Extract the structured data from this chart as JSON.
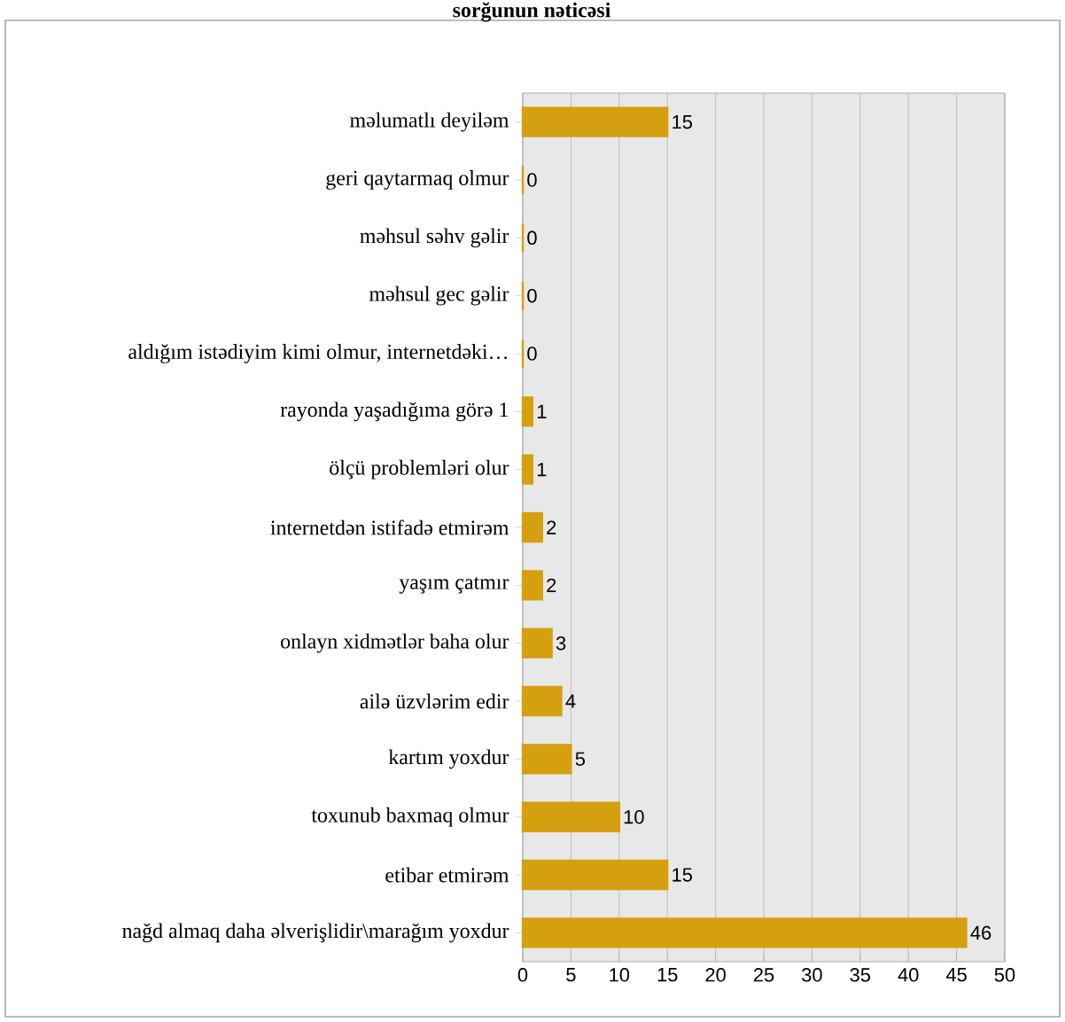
{
  "chart_data": {
    "type": "bar",
    "orientation": "horizontal",
    "title": "sorğunun nəticəsi",
    "categories": [
      "məlumatlı deyiləm",
      "geri qaytarmaq olmur",
      "məhsul səhv gəlir",
      "məhsul gec gəlir",
      "aldığım istədiyim kimi olmur, internetdəki…",
      "rayonda yaşadığıma görə 1",
      "ölçü problemləri olur",
      "internetdən istifadə etmirəm",
      "yaşım çatmır",
      "onlayn xidmətlər baha olur",
      "ailə üzvlərim edir",
      "kartım yoxdur",
      "toxunub baxmaq olmur",
      "etibar etmirəm",
      "nağd almaq daha əlverişlidir\\marağım yoxdur"
    ],
    "values": [
      15,
      0,
      0,
      0,
      0,
      1,
      1,
      2,
      2,
      3,
      4,
      5,
      10,
      15,
      46
    ],
    "color": "#d4a010",
    "xlim": [
      0,
      50
    ],
    "xticks": [
      0,
      5,
      10,
      15,
      20,
      25,
      30,
      35,
      40,
      45,
      50
    ],
    "grid": "x",
    "data_labels": true
  }
}
